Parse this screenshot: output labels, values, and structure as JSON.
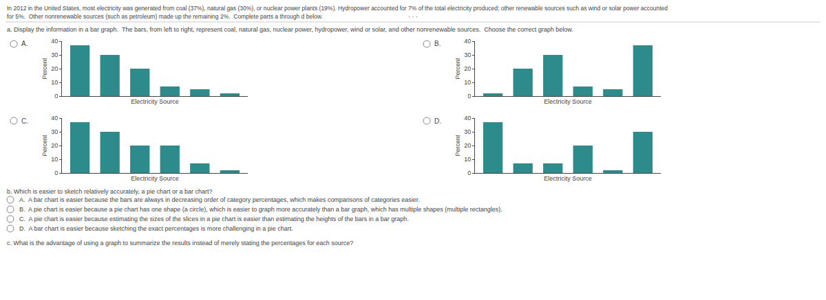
{
  "annotations": [
    "In 2012 in the United States, most electricity was generated from coal (37%), natural gas (30%), or nuclear power plants (19%). Hydropower accounted for 7% of the total electricity produced; other renewable sources such as wind or solar power accounted",
    "for 5%.  Other nonrenewable sources (such as petroleum) made up the remaining 2%.  Complete parts a through d below.",
    "· · ·",
    "a. Display the information in a bar graph.  The bars, from left to right, represent coal, natural gas, nuclear power, hydropower, wind or solar, and other nonrenewable sources.  Choose the correct graph below.",
    "b. Which is easier to sketch relatively accurately, a pie chart or a bar chart?",
    "A.  A bar chart is easier because the bars are always in decreasing order of category percentages, which makes comparisons of categories easier.",
    "B.  A pie chart is easier because a pie chart has one shape (a circle), which is easier to graph more accurately than a bar graph, which has multiple shapes (multiple rectangles).",
    "C.  A pie chart is easier because estimating the sizes of the slices in a pie chart is easier than estimating the heights of the bars in a bar graph.",
    "D.  A bar chart is easier because sketching the exact percentages is more challenging in a pie chart.",
    "c. What is the advantage of using a graph to summarize the results instead of merely stating the percentages for each source?"
  ],
  "chart_data": [
    {
      "type": "bar",
      "title": "A.",
      "xlabel": "Electricity Source",
      "ylabel": "Percent",
      "categories": [
        null,
        null,
        null,
        null,
        null,
        null
      ],
      "values": [
        37,
        30,
        20,
        7,
        5,
        2
      ],
      "color": "#2d8b8b",
      "ylim": [
        0,
        40
      ],
      "yticks": [
        0,
        10,
        20,
        30,
        40
      ],
      "grid": false,
      "tick_labels": "y"
    },
    {
      "type": "bar",
      "title": "B.",
      "xlabel": "Electricity Source",
      "ylabel": "Percent",
      "categories": [
        null,
        null,
        null,
        null,
        null,
        null
      ],
      "values": [
        2,
        20,
        30,
        7,
        5,
        37
      ],
      "color": "#2d8b8b",
      "ylim": [
        0,
        40
      ],
      "yticks": [
        0,
        10,
        20,
        30,
        40
      ],
      "grid": false,
      "tick_labels": "y"
    },
    {
      "type": "bar",
      "title": "C.",
      "xlabel": "Electricity Source",
      "ylabel": "Percent",
      "categories": [
        null,
        null,
        null,
        null,
        null,
        null
      ],
      "values": [
        37,
        30,
        20,
        20,
        7,
        2
      ],
      "color": "#2d8b8b",
      "ylim": [
        0,
        40
      ],
      "yticks": [
        0,
        10,
        20,
        30,
        40
      ],
      "grid": false,
      "tick_labels": "y"
    },
    {
      "type": "bar",
      "title": "D.",
      "xlabel": "Electricity Source",
      "ylabel": "Percent",
      "categories": [
        null,
        null,
        null,
        null,
        null,
        null
      ],
      "values": [
        37,
        7,
        7,
        20,
        2,
        30
      ],
      "color": "#2d8b8b",
      "ylim": [
        0,
        40
      ],
      "yticks": [
        0,
        10,
        20,
        30,
        40
      ],
      "grid": false,
      "tick_labels": "y"
    }
  ]
}
